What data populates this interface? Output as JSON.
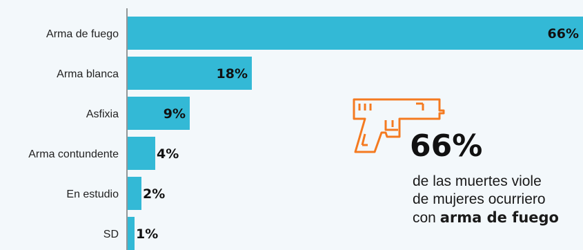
{
  "chart_data": {
    "type": "bar",
    "orientation": "horizontal",
    "categories": [
      "Arma de fuego",
      "Arma blanca",
      "Asfixia",
      "Arma contundente",
      "En estudio",
      "SD"
    ],
    "values": [
      66,
      18,
      9,
      4,
      2,
      1
    ],
    "value_labels": [
      "66%",
      "18%",
      "9%",
      "4%",
      "2%",
      "1%"
    ],
    "unit": "%",
    "xlim": [
      0,
      66
    ],
    "grid": false,
    "bar_color": "#33b9d6"
  },
  "callout": {
    "big_value": "66%",
    "text_line1": "de las muertes viole",
    "text_line2": "de mujeres ocurriero",
    "text_line3_prefix": "con ",
    "text_line3_bold": "arma de fuego",
    "icon": "gun-icon",
    "icon_color": "#f47a20"
  }
}
